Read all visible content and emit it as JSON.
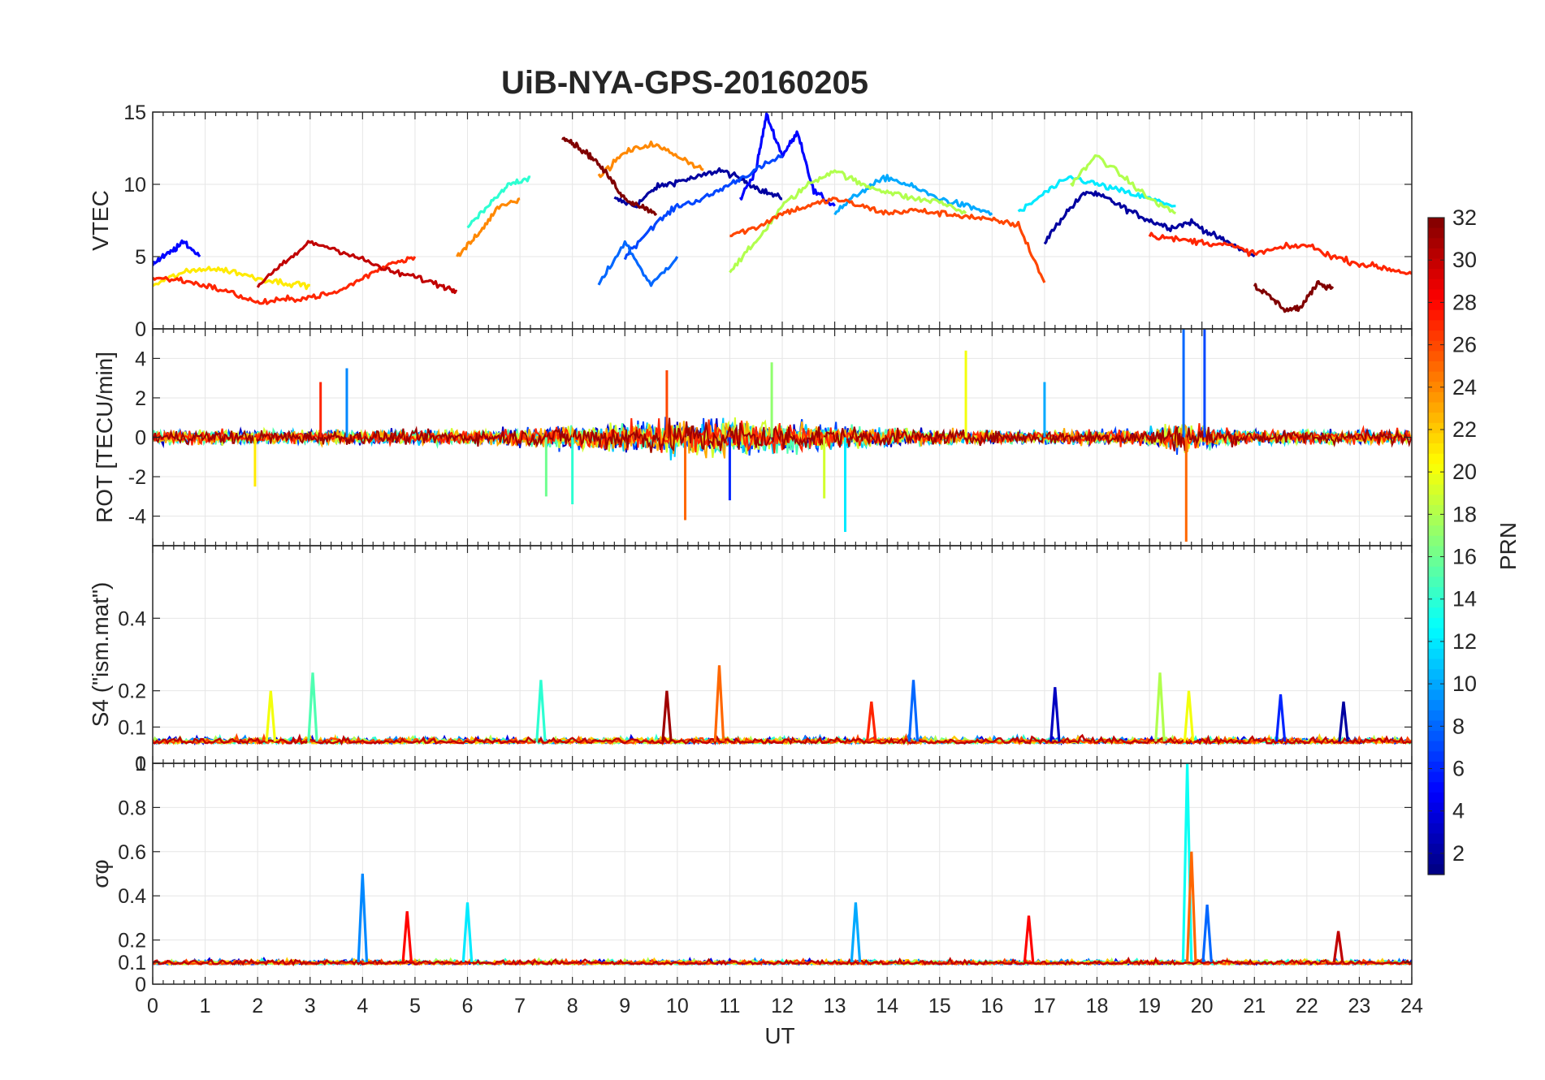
{
  "chart_data": {
    "title": "UiB-NYA-GPS-20160205",
    "xlabel": "UT",
    "xlim": [
      0,
      24
    ],
    "xticks": [
      "0",
      "1",
      "2",
      "3",
      "4",
      "5",
      "6",
      "7",
      "8",
      "9",
      "10",
      "11",
      "12",
      "13",
      "14",
      "15",
      "16",
      "17",
      "18",
      "19",
      "20",
      "21",
      "22",
      "23",
      "24"
    ],
    "grid": true,
    "colorbar": {
      "label": "PRN",
      "range": [
        1,
        32
      ],
      "ticks": [
        "2",
        "4",
        "6",
        "8",
        "10",
        "12",
        "14",
        "16",
        "18",
        "20",
        "22",
        "24",
        "26",
        "28",
        "30",
        "32"
      ],
      "colormap": "jet",
      "placement": "right"
    },
    "panels": [
      {
        "type": "line",
        "ylabel": "VTEC",
        "ylim": [
          0,
          15
        ],
        "yticks": [
          {
            "v": 0,
            "t": "0"
          },
          {
            "v": 5,
            "t": "5"
          },
          {
            "v": 10,
            "t": "10"
          },
          {
            "v": 15,
            "t": "15"
          }
        ],
        "series": [
          {
            "prn": 2,
            "x": [
              8.8,
              9.2,
              9.6,
              10.0,
              10.4,
              10.8,
              11.2,
              11.6,
              12.0
            ],
            "y": [
              9,
              8.5,
              9.8,
              10.2,
              10.5,
              11,
              10.4,
              9.6,
              9
            ]
          },
          {
            "prn": 2,
            "x": [
              17.0,
              17.4,
              17.8,
              18.2,
              18.6,
              19.0,
              19.4,
              19.8,
              20.2,
              20.6,
              21.0
            ],
            "y": [
              6,
              8,
              9.5,
              9,
              8.2,
              7.5,
              7,
              7.4,
              6.5,
              5.8,
              5
            ]
          },
          {
            "prn": 5,
            "x": [
              11.2,
              11.5,
              11.7,
              12.0,
              12.3,
              12.6,
              13.0
            ],
            "y": [
              9,
              11,
              14.8,
              12,
              13.6,
              9.5,
              8.5
            ]
          },
          {
            "prn": 5,
            "x": [
              0,
              0.3,
              0.6,
              0.9
            ],
            "y": [
              4.5,
              5.2,
              6,
              5
            ]
          },
          {
            "prn": 7,
            "x": [
              9.0,
              9.5,
              10.0,
              10.5,
              11.0,
              11.5,
              12.0
            ],
            "y": [
              5,
              7,
              8.5,
              9,
              10,
              11,
              12
            ]
          },
          {
            "prn": 8,
            "x": [
              8.5,
              9.0,
              9.5,
              10.0
            ],
            "y": [
              3,
              6,
              3,
              5
            ]
          },
          {
            "prn": 10,
            "x": [
              13.0,
              13.5,
              14.0,
              14.5,
              15.0,
              15.5,
              16.0
            ],
            "y": [
              8,
              9.5,
              10.5,
              9.8,
              9,
              8.5,
              8
            ]
          },
          {
            "prn": 12,
            "x": [
              16.5,
              17.0,
              17.5,
              18.0,
              18.5,
              19.0,
              19.5
            ],
            "y": [
              8,
              9.4,
              10.5,
              10,
              9.5,
              9,
              8.5
            ]
          },
          {
            "prn": 14,
            "x": [
              6.0,
              6.4,
              6.8,
              7.2
            ],
            "y": [
              7,
              8.5,
              10,
              10.5
            ]
          },
          {
            "prn": 18,
            "x": [
              11.0,
              11.5,
              12.0,
              12.5,
              13.0,
              13.5,
              14.0,
              14.5,
              15.0,
              15.5
            ],
            "y": [
              4,
              6,
              8.5,
              10,
              11,
              10,
              9.5,
              9,
              8.8,
              8
            ]
          },
          {
            "prn": 18,
            "x": [
              17.5,
              18.0,
              18.5,
              19.0,
              19.5
            ],
            "y": [
              10,
              12,
              10.5,
              9,
              8
            ]
          },
          {
            "prn": 21,
            "x": [
              0,
              0.5,
              1.0,
              1.5,
              2.0,
              2.5,
              3.0
            ],
            "y": [
              3,
              3.8,
              4.2,
              4,
              3.5,
              3.2,
              3
            ]
          },
          {
            "prn": 24,
            "x": [
              8.5,
              9.0,
              9.5,
              10.0,
              10.5
            ],
            "y": [
              10.5,
              12.2,
              12.8,
              12,
              11
            ]
          },
          {
            "prn": 24,
            "x": [
              5.8,
              6.2,
              6.6,
              7.0
            ],
            "y": [
              5,
              6.5,
              8.5,
              9
            ]
          },
          {
            "prn": 26,
            "x": [
              11.0,
              11.5,
              12.0,
              12.5,
              13.0,
              13.5,
              14.0,
              14.5,
              15.0,
              15.5,
              16.0,
              16.5,
              17.0
            ],
            "y": [
              6.5,
              7,
              8,
              8.5,
              9,
              8.5,
              8,
              8.2,
              8,
              7.8,
              7.5,
              7.2,
              3.2
            ]
          },
          {
            "prn": 27,
            "x": [
              0,
              0.5,
              1.0,
              1.5,
              2.0,
              2.5,
              3.0,
              3.5,
              4.0,
              4.5,
              5.0
            ],
            "y": [
              3.5,
              3.4,
              3.0,
              2.5,
              1.8,
              2,
              2.2,
              2.5,
              3.5,
              4.5,
              5
            ]
          },
          {
            "prn": 27,
            "x": [
              19.0,
              19.5,
              20.0,
              20.5,
              21.0,
              21.5,
              22.0,
              22.5,
              23.0,
              23.5,
              24.0
            ],
            "y": [
              6.5,
              6.2,
              6,
              5.8,
              5.2,
              5.6,
              5.8,
              5,
              4.5,
              4.2,
              3.8
            ]
          },
          {
            "prn": 30,
            "x": [
              2.0,
              2.5,
              3.0,
              3.5,
              4.0,
              4.5,
              5.0,
              5.5,
              5.8
            ],
            "y": [
              3,
              4.5,
              6,
              5.5,
              4.8,
              4,
              3.6,
              3,
              2.6
            ]
          },
          {
            "prn": 32,
            "x": [
              7.8,
              8.1,
              8.4,
              8.7,
              9.0,
              9.3,
              9.6
            ],
            "y": [
              13.4,
              12.6,
              11.8,
              10.5,
              9,
              8.5,
              8
            ]
          },
          {
            "prn": 32,
            "x": [
              21.0,
              21.3,
              21.6,
              21.9,
              22.2,
              22.5
            ],
            "y": [
              3,
              2.2,
              1.3,
              1.5,
              3.2,
              2.8
            ]
          }
        ]
      },
      {
        "type": "line",
        "ylabel": "ROT [TECU/min]",
        "ylim": [
          -5.5,
          5.5
        ],
        "yticks": [
          {
            "v": -4,
            "t": "-4"
          },
          {
            "v": -2,
            "t": "-2"
          },
          {
            "v": 0,
            "t": "0"
          },
          {
            "v": 2,
            "t": "2"
          },
          {
            "v": 4,
            "t": "4"
          }
        ],
        "spikes": [
          {
            "prn": 12,
            "x": 13.2,
            "y": -4.8
          },
          {
            "prn": 25,
            "x": 10.15,
            "y": -4.2
          },
          {
            "prn": 25,
            "x": 19.7,
            "y": -5.3
          },
          {
            "prn": 8,
            "x": 19.65,
            "y": 5.5
          },
          {
            "prn": 7,
            "x": 20.05,
            "y": 5.5
          },
          {
            "prn": 20,
            "x": 15.5,
            "y": 4.4
          },
          {
            "prn": 9,
            "x": 3.7,
            "y": 3.5
          },
          {
            "prn": 26,
            "x": 9.8,
            "y": 3.4
          },
          {
            "prn": 27,
            "x": 3.2,
            "y": 2.8
          },
          {
            "prn": 21,
            "x": 1.95,
            "y": -2.5
          },
          {
            "prn": 16,
            "x": 7.5,
            "y": -3.0
          },
          {
            "prn": 14,
            "x": 8.0,
            "y": -3.4
          },
          {
            "prn": 17,
            "x": 11.8,
            "y": 3.8
          },
          {
            "prn": 10,
            "x": 17.0,
            "y": 2.8
          },
          {
            "prn": 6,
            "x": 11.0,
            "y": -3.2
          },
          {
            "prn": 19,
            "x": 12.8,
            "y": -3.1
          }
        ]
      },
      {
        "type": "line",
        "ylabel": "S4 (\"ism.mat\")",
        "ylim": [
          0,
          0.6
        ],
        "yticks": [
          {
            "v": 0,
            "t": "0"
          },
          {
            "v": 0.1,
            "t": "0.1"
          },
          {
            "v": 0.2,
            "t": "0.2"
          },
          {
            "v": 0.4,
            "t": "0.4"
          }
        ],
        "baseline": 0.06,
        "peaks": [
          {
            "prn": 20,
            "x": 2.25,
            "y": 0.2
          },
          {
            "prn": 15,
            "x": 3.05,
            "y": 0.25
          },
          {
            "prn": 14,
            "x": 7.4,
            "y": 0.23
          },
          {
            "prn": 31,
            "x": 9.8,
            "y": 0.2
          },
          {
            "prn": 25,
            "x": 10.8,
            "y": 0.27
          },
          {
            "prn": 27,
            "x": 13.7,
            "y": 0.17
          },
          {
            "prn": 8,
            "x": 14.5,
            "y": 0.23
          },
          {
            "prn": 3,
            "x": 17.2,
            "y": 0.21
          },
          {
            "prn": 18,
            "x": 19.2,
            "y": 0.25
          },
          {
            "prn": 20,
            "x": 19.75,
            "y": 0.2
          },
          {
            "prn": 6,
            "x": 21.5,
            "y": 0.19
          },
          {
            "prn": 2,
            "x": 22.7,
            "y": 0.17
          }
        ]
      },
      {
        "type": "line",
        "ylabel": "σφ",
        "ylim": [
          0,
          1
        ],
        "yticks": [
          {
            "v": 0,
            "t": "0"
          },
          {
            "v": 0.1,
            "t": "0.1"
          },
          {
            "v": 0.2,
            "t": "0.2"
          },
          {
            "v": 0.4,
            "t": "0.4"
          },
          {
            "v": 0.6,
            "t": "0.6"
          },
          {
            "v": 0.8,
            "t": "0.8"
          },
          {
            "v": 1,
            "t": "1"
          }
        ],
        "baseline": 0.1,
        "peaks": [
          {
            "prn": 9,
            "x": 4.0,
            "y": 0.5
          },
          {
            "prn": 28,
            "x": 4.85,
            "y": 0.33
          },
          {
            "prn": 12,
            "x": 6.0,
            "y": 0.37
          },
          {
            "prn": 28,
            "x": 16.7,
            "y": 0.31
          },
          {
            "prn": 13,
            "x": 19.72,
            "y": 1.0
          },
          {
            "prn": 25,
            "x": 19.8,
            "y": 0.6
          },
          {
            "prn": 8,
            "x": 20.1,
            "y": 0.36
          },
          {
            "prn": 10,
            "x": 13.4,
            "y": 0.37
          },
          {
            "prn": 30,
            "x": 22.6,
            "y": 0.24
          }
        ]
      }
    ]
  }
}
